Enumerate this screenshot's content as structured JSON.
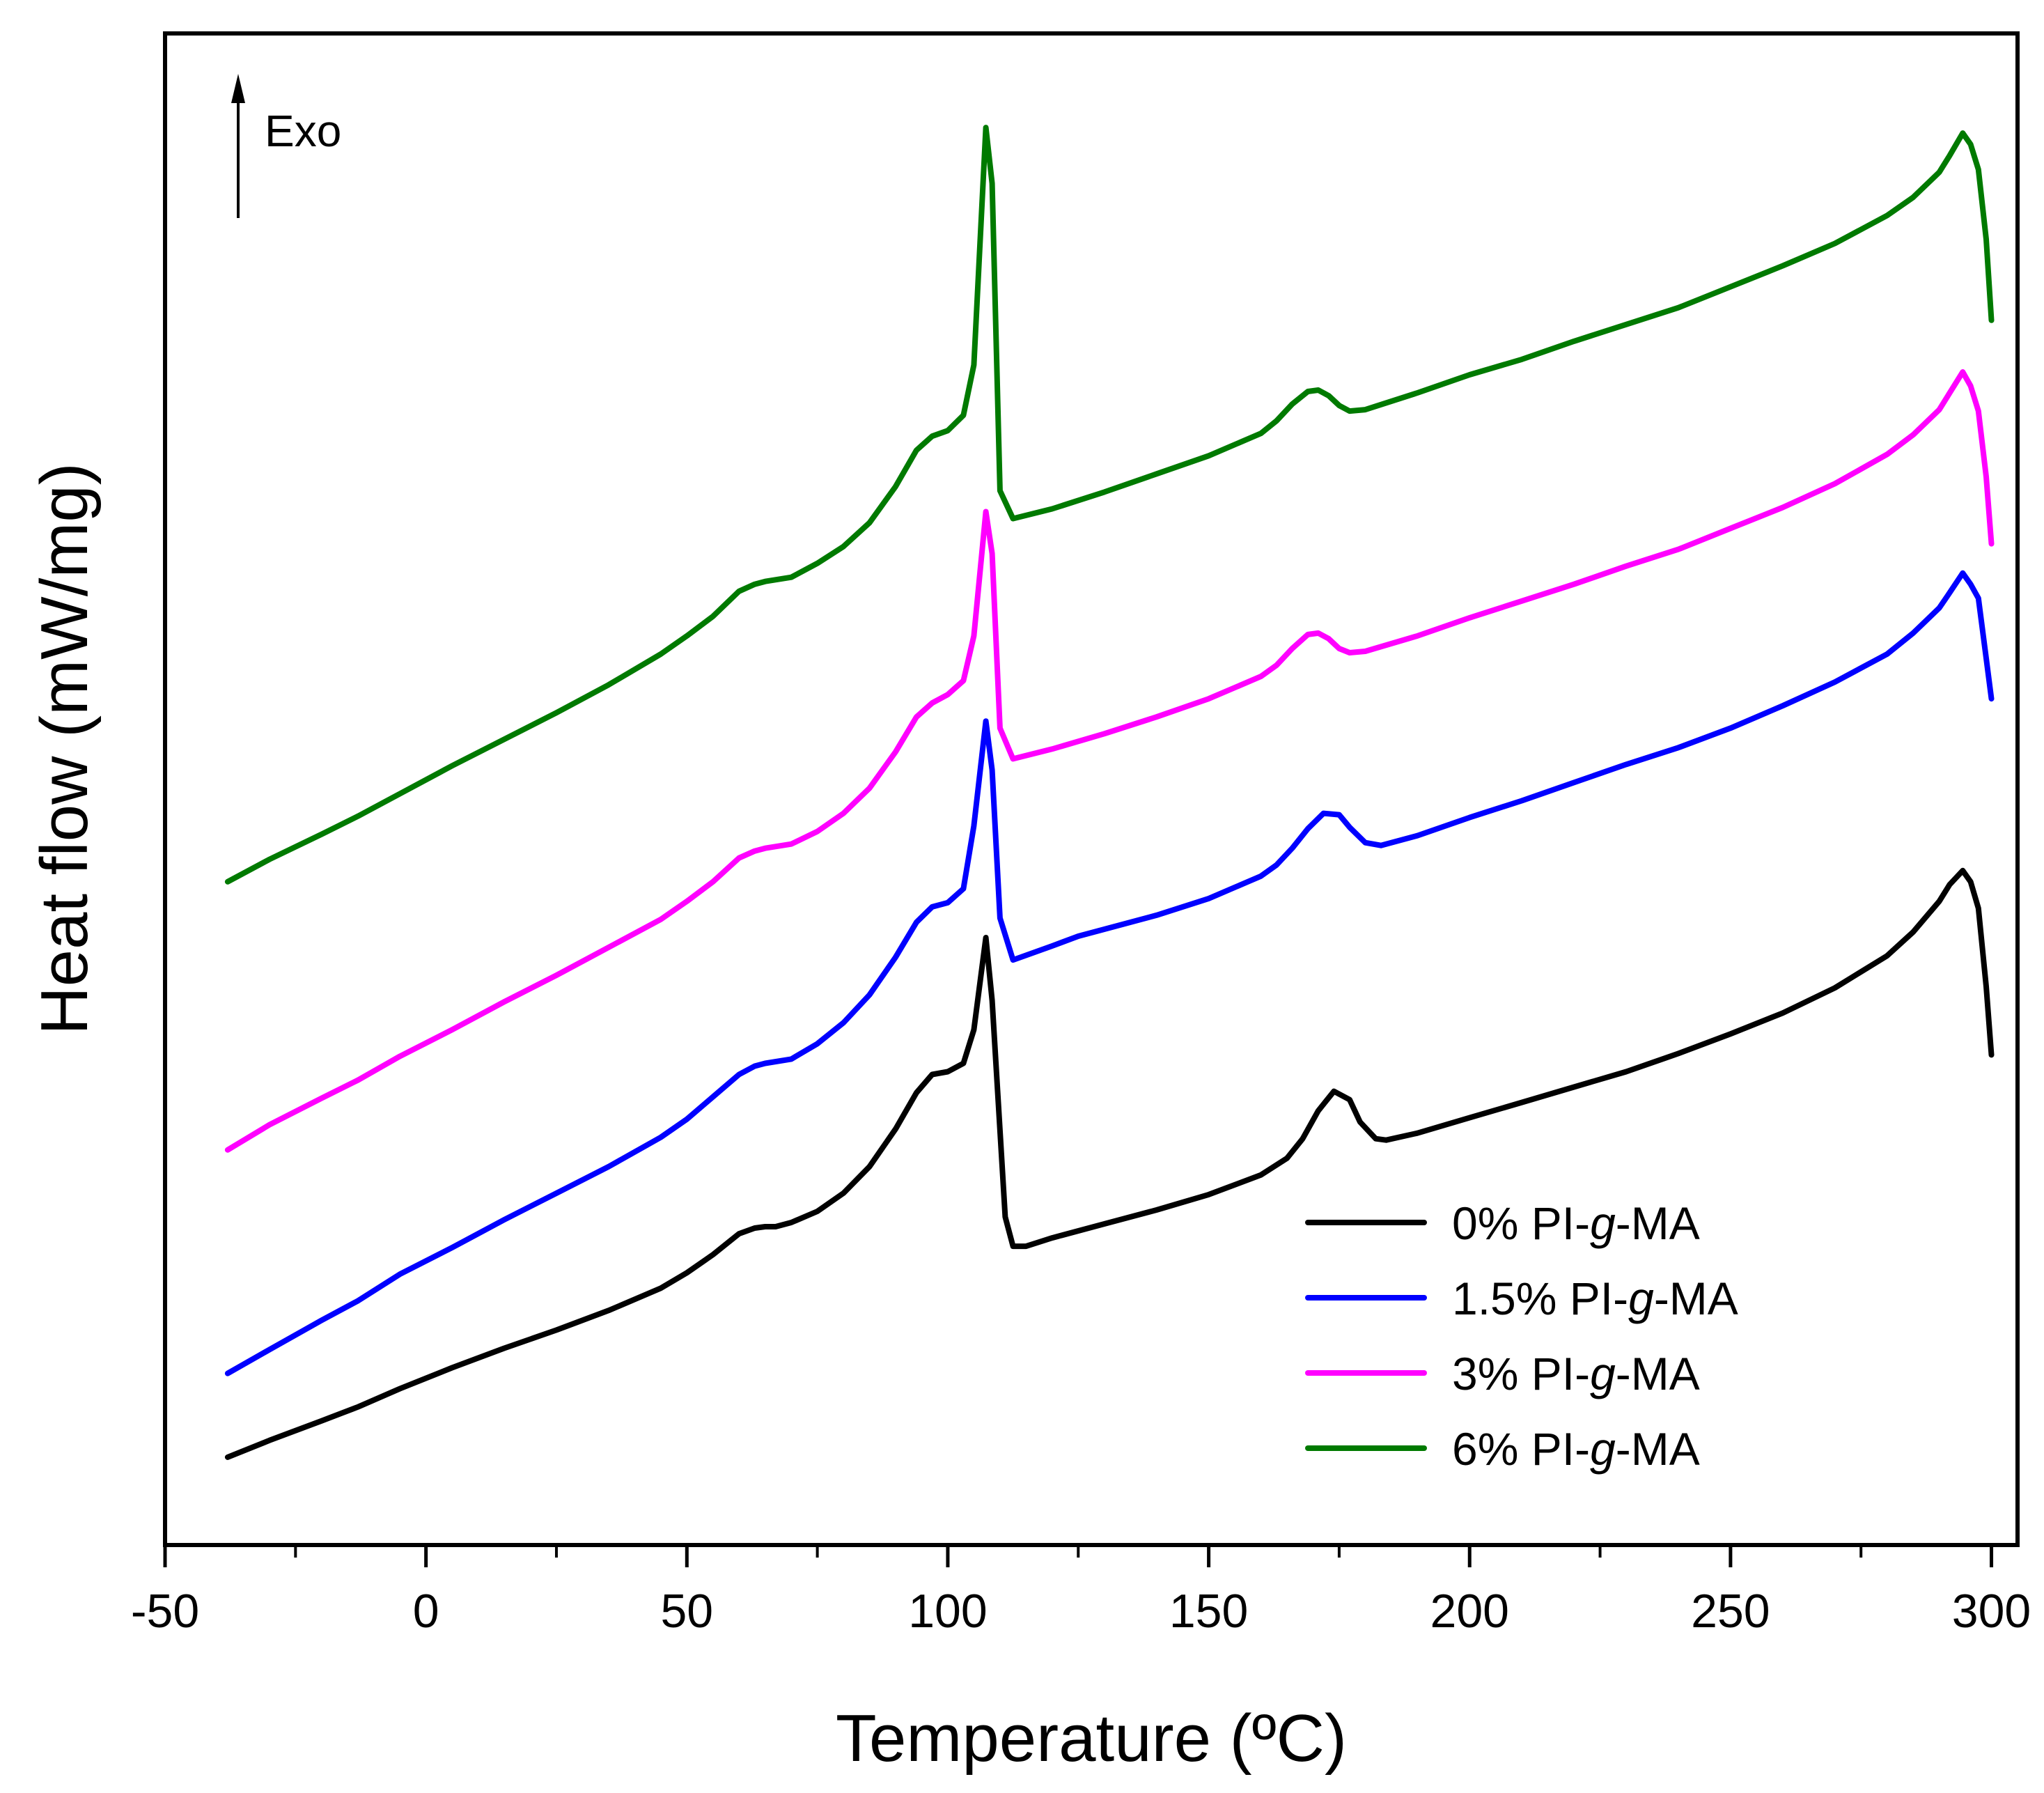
{
  "chart_data": {
    "type": "line",
    "title": "",
    "xlabel": "Temperature (ºC)",
    "ylabel": "Heat flow (mW/mg)",
    "xlim": [
      -50,
      305
    ],
    "ylim": [
      0,
      100
    ],
    "x_ticks": [
      -50,
      0,
      50,
      100,
      150,
      200,
      250,
      300
    ],
    "x_tick_labels": [
      "-50",
      "0",
      "50",
      "100",
      "150",
      "200",
      "250",
      "300"
    ],
    "y_ticks_shown": false,
    "annotation": {
      "label": "Exo",
      "direction": "up"
    },
    "legend": {
      "position": "bottom-right"
    },
    "series": [
      {
        "name_prefix": "0% PI-",
        "name_italic": "g",
        "name_suffix": "-MA",
        "color": "#000000",
        "points": [
          [
            -38,
            2.8
          ],
          [
            -30,
            4.0
          ],
          [
            -20,
            5.4
          ],
          [
            -13,
            6.4
          ],
          [
            -5,
            7.7
          ],
          [
            5,
            9.2
          ],
          [
            15,
            10.6
          ],
          [
            25,
            11.9
          ],
          [
            35,
            13.3
          ],
          [
            45,
            14.9
          ],
          [
            50,
            16.0
          ],
          [
            55,
            17.3
          ],
          [
            60,
            18.8
          ],
          [
            63,
            19.2
          ],
          [
            65,
            19.3
          ],
          [
            67,
            19.3
          ],
          [
            70,
            19.6
          ],
          [
            75,
            20.4
          ],
          [
            80,
            21.7
          ],
          [
            85,
            23.6
          ],
          [
            90,
            26.3
          ],
          [
            94,
            28.9
          ],
          [
            97,
            30.2
          ],
          [
            100,
            30.4
          ],
          [
            103,
            31.0
          ],
          [
            105,
            33.4
          ],
          [
            107.3,
            40.0
          ],
          [
            108.5,
            35.5
          ],
          [
            111,
            20.0
          ],
          [
            112.5,
            17.9
          ],
          [
            115,
            17.9
          ],
          [
            120,
            18.5
          ],
          [
            130,
            19.5
          ],
          [
            140,
            20.5
          ],
          [
            150,
            21.6
          ],
          [
            160,
            23.0
          ],
          [
            165,
            24.2
          ],
          [
            168,
            25.6
          ],
          [
            171,
            27.6
          ],
          [
            174,
            29.0
          ],
          [
            177,
            28.4
          ],
          [
            179,
            26.8
          ],
          [
            182,
            25.6
          ],
          [
            184,
            25.5
          ],
          [
            190,
            26.0
          ],
          [
            200,
            27.1
          ],
          [
            210,
            28.2
          ],
          [
            220,
            29.3
          ],
          [
            230,
            30.4
          ],
          [
            240,
            31.7
          ],
          [
            250,
            33.1
          ],
          [
            260,
            34.6
          ],
          [
            270,
            36.4
          ],
          [
            280,
            38.7
          ],
          [
            285,
            40.4
          ],
          [
            290,
            42.6
          ],
          [
            292,
            43.8
          ],
          [
            294.5,
            44.8
          ],
          [
            296,
            44.0
          ],
          [
            297.5,
            42.1
          ],
          [
            299,
            36.5
          ],
          [
            300,
            31.6
          ]
        ]
      },
      {
        "name_prefix": "1.5% PI-",
        "name_italic": "g",
        "name_suffix": "-MA",
        "color": "#0000ff",
        "points": [
          [
            -38,
            8.8
          ],
          [
            -30,
            10.5
          ],
          [
            -20,
            12.6
          ],
          [
            -13,
            14.0
          ],
          [
            -5,
            15.9
          ],
          [
            5,
            17.8
          ],
          [
            15,
            19.8
          ],
          [
            25,
            21.7
          ],
          [
            35,
            23.6
          ],
          [
            45,
            25.7
          ],
          [
            50,
            27.0
          ],
          [
            55,
            28.6
          ],
          [
            60,
            30.2
          ],
          [
            63,
            30.8
          ],
          [
            65,
            31.0
          ],
          [
            70,
            31.3
          ],
          [
            75,
            32.4
          ],
          [
            80,
            33.9
          ],
          [
            85,
            35.9
          ],
          [
            90,
            38.6
          ],
          [
            94,
            41.1
          ],
          [
            97,
            42.2
          ],
          [
            100,
            42.5
          ],
          [
            103,
            43.5
          ],
          [
            105,
            48.0
          ],
          [
            107.3,
            55.5
          ],
          [
            108.5,
            52.0
          ],
          [
            110,
            41.4
          ],
          [
            112.5,
            38.4
          ],
          [
            120,
            39.4
          ],
          [
            125,
            40.1
          ],
          [
            130,
            40.6
          ],
          [
            140,
            41.6
          ],
          [
            150,
            42.8
          ],
          [
            160,
            44.4
          ],
          [
            163,
            45.2
          ],
          [
            166,
            46.4
          ],
          [
            169,
            47.8
          ],
          [
            172,
            48.9
          ],
          [
            175,
            48.8
          ],
          [
            177,
            47.9
          ],
          [
            180,
            46.8
          ],
          [
            183,
            46.6
          ],
          [
            190,
            47.3
          ],
          [
            200,
            48.6
          ],
          [
            210,
            49.8
          ],
          [
            220,
            51.1
          ],
          [
            230,
            52.4
          ],
          [
            240,
            53.6
          ],
          [
            250,
            55.0
          ],
          [
            260,
            56.6
          ],
          [
            270,
            58.3
          ],
          [
            280,
            60.3
          ],
          [
            285,
            61.8
          ],
          [
            290,
            63.6
          ],
          [
            292,
            64.7
          ],
          [
            294.5,
            66.1
          ],
          [
            296,
            65.3
          ],
          [
            297.5,
            64.3
          ],
          [
            299,
            60.0
          ],
          [
            300,
            57.1
          ]
        ]
      },
      {
        "name_prefix": "3% PI-",
        "name_italic": "g",
        "name_suffix": "-MA",
        "color": "#ff00ff",
        "points": [
          [
            -38,
            24.8
          ],
          [
            -30,
            26.6
          ],
          [
            -20,
            28.5
          ],
          [
            -13,
            29.8
          ],
          [
            -5,
            31.5
          ],
          [
            5,
            33.4
          ],
          [
            15,
            35.4
          ],
          [
            25,
            37.3
          ],
          [
            35,
            39.3
          ],
          [
            45,
            41.3
          ],
          [
            50,
            42.6
          ],
          [
            55,
            44.0
          ],
          [
            60,
            45.7
          ],
          [
            63,
            46.2
          ],
          [
            65,
            46.4
          ],
          [
            70,
            46.7
          ],
          [
            75,
            47.6
          ],
          [
            80,
            48.9
          ],
          [
            85,
            50.7
          ],
          [
            90,
            53.3
          ],
          [
            94,
            55.8
          ],
          [
            97,
            56.8
          ],
          [
            100,
            57.4
          ],
          [
            103,
            58.4
          ],
          [
            105,
            61.6
          ],
          [
            107.3,
            70.5
          ],
          [
            108.5,
            67.5
          ],
          [
            110,
            55.0
          ],
          [
            112.5,
            52.8
          ],
          [
            120,
            53.5
          ],
          [
            130,
            54.6
          ],
          [
            140,
            55.8
          ],
          [
            150,
            57.1
          ],
          [
            160,
            58.7
          ],
          [
            163,
            59.5
          ],
          [
            166,
            60.7
          ],
          [
            169,
            61.7
          ],
          [
            171,
            61.8
          ],
          [
            173,
            61.4
          ],
          [
            175,
            60.7
          ],
          [
            177,
            60.4
          ],
          [
            180,
            60.5
          ],
          [
            190,
            61.6
          ],
          [
            200,
            62.9
          ],
          [
            210,
            64.1
          ],
          [
            220,
            65.3
          ],
          [
            230,
            66.6
          ],
          [
            240,
            67.8
          ],
          [
            250,
            69.3
          ],
          [
            260,
            70.8
          ],
          [
            270,
            72.5
          ],
          [
            280,
            74.6
          ],
          [
            285,
            76.0
          ],
          [
            290,
            77.8
          ],
          [
            292,
            79.0
          ],
          [
            294.5,
            80.5
          ],
          [
            296,
            79.5
          ],
          [
            297.5,
            77.7
          ],
          [
            299,
            73.0
          ],
          [
            300,
            68.2
          ]
        ]
      },
      {
        "name_prefix": "6% PI-",
        "name_italic": "g",
        "name_suffix": "-MA",
        "color": "#007a00",
        "points": [
          [
            -38,
            44.0
          ],
          [
            -30,
            45.6
          ],
          [
            -20,
            47.4
          ],
          [
            -13,
            48.7
          ],
          [
            -5,
            50.3
          ],
          [
            5,
            52.3
          ],
          [
            15,
            54.2
          ],
          [
            25,
            56.1
          ],
          [
            35,
            58.1
          ],
          [
            45,
            60.3
          ],
          [
            50,
            61.6
          ],
          [
            55,
            63.0
          ],
          [
            60,
            64.8
          ],
          [
            63,
            65.3
          ],
          [
            65,
            65.5
          ],
          [
            70,
            65.8
          ],
          [
            75,
            66.8
          ],
          [
            80,
            68.0
          ],
          [
            85,
            69.7
          ],
          [
            90,
            72.3
          ],
          [
            94,
            74.9
          ],
          [
            97,
            75.9
          ],
          [
            100,
            76.3
          ],
          [
            103,
            77.4
          ],
          [
            105,
            81.0
          ],
          [
            107.3,
            98.0
          ],
          [
            108.5,
            94.0
          ],
          [
            110,
            72.0
          ],
          [
            112.5,
            70.0
          ],
          [
            120,
            70.7
          ],
          [
            130,
            71.9
          ],
          [
            140,
            73.2
          ],
          [
            150,
            74.5
          ],
          [
            160,
            76.1
          ],
          [
            163,
            77.0
          ],
          [
            166,
            78.2
          ],
          [
            169,
            79.1
          ],
          [
            171,
            79.2
          ],
          [
            173,
            78.8
          ],
          [
            175,
            78.1
          ],
          [
            177,
            77.7
          ],
          [
            180,
            77.8
          ],
          [
            190,
            79.0
          ],
          [
            200,
            80.3
          ],
          [
            210,
            81.4
          ],
          [
            220,
            82.7
          ],
          [
            230,
            83.9
          ],
          [
            240,
            85.1
          ],
          [
            250,
            86.6
          ],
          [
            260,
            88.1
          ],
          [
            270,
            89.7
          ],
          [
            280,
            91.7
          ],
          [
            285,
            93.0
          ],
          [
            290,
            94.8
          ],
          [
            292,
            96.0
          ],
          [
            294.5,
            97.6
          ],
          [
            296,
            96.8
          ],
          [
            297.5,
            95.0
          ],
          [
            299,
            90.0
          ],
          [
            300,
            84.2
          ]
        ]
      }
    ]
  }
}
